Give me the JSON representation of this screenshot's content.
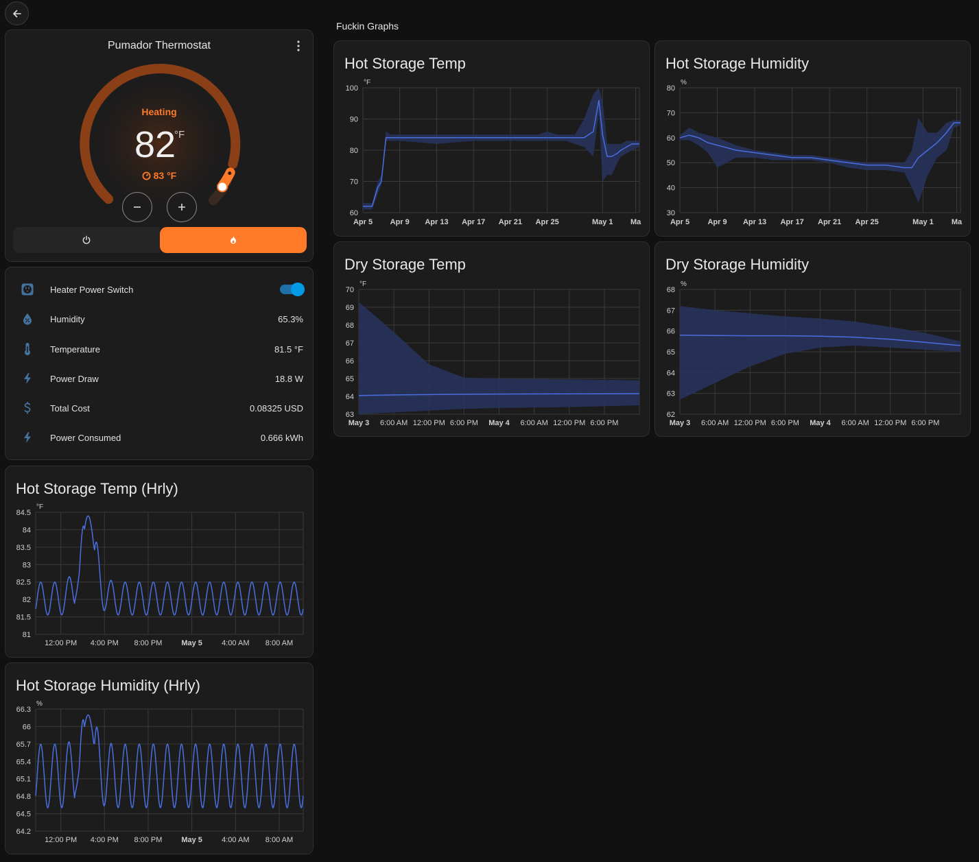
{
  "nav": {
    "back_icon": "arrow-left-icon"
  },
  "thermostat": {
    "title": "Pumador Thermostat",
    "state": "Heating",
    "current_temp": "82",
    "unit": "°F",
    "target_temp": "83 °F",
    "accent_color": "#ff7a26",
    "modes": [
      {
        "icon": "power-icon",
        "active": false
      },
      {
        "icon": "fire-icon",
        "active": true
      }
    ]
  },
  "entities": [
    {
      "icon": "power-socket-icon",
      "name": "Heater Power Switch",
      "value": "",
      "toggle_on": true
    },
    {
      "icon": "water-percent-icon",
      "name": "Humidity",
      "value": "65.3%"
    },
    {
      "icon": "thermometer-icon",
      "name": "Temperature",
      "value": "81.5 °F"
    },
    {
      "icon": "flash-icon",
      "name": "Power Draw",
      "value": "18.8 W"
    },
    {
      "icon": "currency-usd-icon",
      "name": "Total Cost",
      "value": "0.08325 USD"
    },
    {
      "icon": "flash-icon",
      "name": "Power Consumed",
      "value": "0.666 kWh"
    }
  ],
  "section_title": "Fuckin Graphs",
  "chart_data": [
    {
      "id": "hot_temp",
      "type": "line",
      "title": "Hot Storage Temp",
      "unit": "°F",
      "ylim": [
        60,
        100
      ],
      "yticks": [
        "100",
        "90",
        "80",
        "70",
        "60"
      ],
      "xticks": [
        "Apr 5",
        "Apr 9",
        "Apr 13",
        "Apr 17",
        "Apr 21",
        "Apr 25",
        "May 1",
        "Ma"
      ],
      "x_positions_days": [
        0,
        4,
        8,
        12,
        16,
        20,
        26,
        29.6
      ],
      "x_range_days": [
        0,
        30
      ],
      "x": [
        0,
        1,
        1.6,
        2,
        2.5,
        3,
        4,
        8,
        12,
        16,
        19,
        20,
        21,
        22,
        23,
        24,
        25,
        25.6,
        26,
        26.5,
        27,
        27.6,
        28,
        28.6,
        29.2,
        30
      ],
      "values": [
        62,
        62,
        68,
        70,
        84,
        84,
        84,
        84,
        84,
        84,
        84,
        84,
        84,
        84,
        84,
        84,
        86,
        96,
        85,
        78,
        78,
        79,
        80,
        81,
        82,
        82
      ],
      "band_low": [
        61,
        61,
        66,
        69,
        83,
        83,
        83,
        82,
        83,
        83,
        83,
        83,
        83,
        83,
        82,
        81,
        78,
        92,
        70,
        72,
        72,
        76,
        78,
        79,
        80,
        81
      ],
      "band_high": [
        63,
        63,
        70,
        72,
        86,
        85,
        85,
        85,
        85,
        85,
        85,
        86,
        85,
        85,
        85,
        90,
        98,
        100,
        96,
        82,
        82,
        82,
        82,
        83,
        83,
        83
      ]
    },
    {
      "id": "hot_hum",
      "type": "line",
      "title": "Hot Storage Humidity",
      "unit": "%",
      "ylim": [
        30,
        80
      ],
      "yticks": [
        "80",
        "70",
        "60",
        "50",
        "40",
        "30"
      ],
      "xticks": [
        "Apr 5",
        "Apr 9",
        "Apr 13",
        "Apr 17",
        "Apr 21",
        "Apr 25",
        "May 1",
        "Ma"
      ],
      "x_positions_days": [
        0,
        4,
        8,
        12,
        16,
        20,
        26,
        29.6
      ],
      "x_range_days": [
        0,
        30
      ],
      "x": [
        0,
        1,
        2,
        3,
        4,
        6,
        8,
        10,
        12,
        14,
        16,
        18,
        20,
        22,
        24,
        24.8,
        25.5,
        26.5,
        27.5,
        28.5,
        29.3,
        30
      ],
      "values": [
        60,
        61,
        60,
        58,
        57,
        55,
        54,
        53,
        52,
        52,
        51,
        50,
        49,
        49,
        48,
        48,
        52,
        55,
        58,
        62,
        66,
        66
      ],
      "band_low": [
        59,
        59,
        57,
        54,
        48,
        52,
        52,
        51,
        51,
        51,
        50,
        48,
        47,
        47,
        46,
        40,
        34,
        45,
        52,
        55,
        64,
        65
      ],
      "band_high": [
        61,
        64,
        62,
        61,
        60,
        57,
        55,
        54,
        53,
        53,
        52,
        51,
        50,
        50,
        50,
        55,
        68,
        62,
        62,
        66,
        67,
        67
      ]
    },
    {
      "id": "dry_temp",
      "type": "line",
      "title": "Dry Storage Temp",
      "unit": "°F",
      "ylim": [
        63,
        70
      ],
      "yticks": [
        "70",
        "69",
        "68",
        "67",
        "66",
        "65",
        "64",
        "63"
      ],
      "xticks": [
        "May 3",
        "6:00 AM",
        "12:00 PM",
        "6:00 PM",
        "May 4",
        "6:00 AM",
        "12:00 PM",
        "6:00 PM"
      ],
      "x_positions_days": [
        0,
        0.25,
        0.5,
        0.75,
        1,
        1.25,
        1.5,
        1.75
      ],
      "x_range_days": [
        0,
        2
      ],
      "x": [
        0,
        0.25,
        0.5,
        0.75,
        1,
        1.5,
        2
      ],
      "values": [
        64.05,
        64.08,
        64.1,
        64.12,
        64.13,
        64.14,
        64.15
      ],
      "band_low": [
        63.0,
        63.1,
        63.2,
        63.3,
        63.35,
        63.4,
        63.5
      ],
      "band_high": [
        69.3,
        67.6,
        65.8,
        65.05,
        65.0,
        64.95,
        64.9
      ]
    },
    {
      "id": "dry_hum",
      "type": "line",
      "title": "Dry Storage Humidity",
      "unit": "%",
      "ylim": [
        62,
        68
      ],
      "yticks": [
        "68",
        "67",
        "66",
        "65",
        "64",
        "63",
        "62"
      ],
      "xticks": [
        "May 3",
        "6:00 AM",
        "12:00 PM",
        "6:00 PM",
        "May 4",
        "6:00 AM",
        "12:00 PM",
        "6:00 PM"
      ],
      "x_positions_days": [
        0,
        0.25,
        0.5,
        0.75,
        1,
        1.25,
        1.5,
        1.75
      ],
      "x_range_days": [
        0,
        2
      ],
      "x": [
        0,
        0.25,
        0.5,
        0.75,
        1,
        1.25,
        1.5,
        1.75,
        2
      ],
      "values": [
        65.8,
        65.78,
        65.77,
        65.77,
        65.75,
        65.7,
        65.6,
        65.45,
        65.3
      ],
      "band_low": [
        62.7,
        63.5,
        64.3,
        64.9,
        65.2,
        65.3,
        65.2,
        65.1,
        65.0
      ],
      "band_high": [
        67.2,
        67.0,
        66.85,
        66.7,
        66.6,
        66.45,
        66.2,
        65.9,
        65.5
      ]
    },
    {
      "id": "hot_temp_hrly",
      "type": "line",
      "title": "Hot Storage Temp (Hrly)",
      "unit": "°F",
      "ylim": [
        81,
        84.5
      ],
      "yticks": [
        "84.5",
        "84",
        "83.5",
        "83",
        "82.5",
        "82",
        "81.5",
        "81"
      ],
      "xticks": [
        "12:00 PM",
        "4:00 PM",
        "8:00 PM",
        "May 5",
        "4:00 AM",
        "8:00 AM"
      ],
      "x_positions_hours": [
        2.3,
        6.3,
        10.3,
        14.3,
        18.3,
        22.3
      ],
      "x_range_hours": [
        0,
        24.5
      ],
      "base": 81.55,
      "peak": 82.5,
      "spike": 84.4,
      "cycles": 19
    },
    {
      "id": "hot_hum_hrly",
      "type": "line",
      "title": "Hot Storage Humidity (Hrly)",
      "unit": "%",
      "ylim": [
        64.2,
        66.3
      ],
      "yticks": [
        "66.3",
        "66",
        "65.7",
        "65.4",
        "65.1",
        "64.8",
        "64.5",
        "64.2"
      ],
      "xticks": [
        "12:00 PM",
        "4:00 PM",
        "8:00 PM",
        "May 5",
        "4:00 AM",
        "8:00 AM"
      ],
      "x_positions_hours": [
        2.3,
        6.3,
        10.3,
        14.3,
        18.3,
        22.3
      ],
      "x_range_hours": [
        0,
        24.5
      ],
      "base": 64.6,
      "peak": 65.7,
      "spike": 66.2,
      "cycles": 19
    }
  ],
  "colors": {
    "line": "#4a6ee0",
    "band": "#27345e",
    "grid": "#3a3a3a",
    "axis_text": "#d0d0d0"
  }
}
